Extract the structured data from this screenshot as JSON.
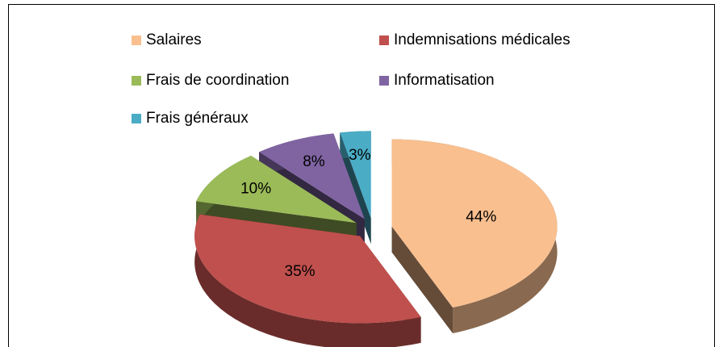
{
  "chart_data": {
    "type": "pie3d",
    "categories": [
      "Salaires",
      "Indemnisations médicales",
      "Frais de coordination",
      "Informatisation",
      "Frais généraux"
    ],
    "values": [
      44,
      35,
      10,
      8,
      3
    ],
    "value_labels": [
      "44%",
      "35%",
      "10%",
      "8%",
      "3%"
    ],
    "colors": [
      "#f9bf8f",
      "#c0504d",
      "#9bbb59",
      "#8064a2",
      "#4bacc6"
    ],
    "legend": "top"
  }
}
